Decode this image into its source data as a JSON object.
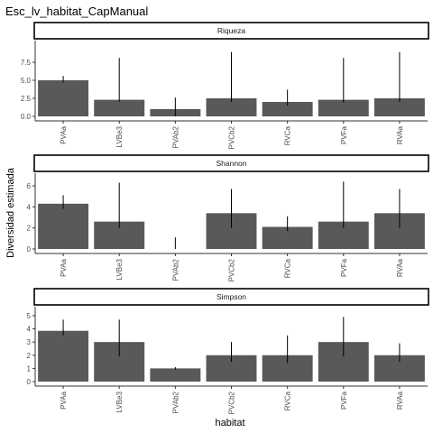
{
  "chart_data": {
    "type": "bar",
    "title": "Esc_lv_habitat_CapManual",
    "xlabel": "habitat",
    "ylabel": "Diversidad estimada",
    "categories": [
      "PVAa",
      "LVBe3",
      "PVAb2",
      "PVCb2",
      "RVCa",
      "PVFa",
      "RVAa"
    ],
    "facets": [
      {
        "name": "Riqueza",
        "ylim": [
          0,
          9.5
        ],
        "yticks": [
          "0.0",
          "2.5",
          "5.0",
          "7.5"
        ],
        "ytick_values": [
          0,
          2.5,
          5,
          7.5
        ],
        "values": [
          5,
          2.3,
          1,
          2.5,
          2,
          2.3,
          2.5
        ],
        "error_low": [
          4.7,
          2.0,
          0.0,
          2.0,
          1.5,
          1.9,
          2.0
        ],
        "error_high": [
          5.6,
          8.1,
          2.6,
          8.9,
          3.7,
          8.1,
          8.9
        ]
      },
      {
        "name": "Shannon",
        "ylim": [
          0,
          6.6
        ],
        "yticks": [
          "0",
          "2",
          "4",
          "6"
        ],
        "ytick_values": [
          0,
          2,
          4,
          6
        ],
        "values": [
          4.3,
          2.6,
          0,
          3.4,
          2.1,
          2.6,
          3.4
        ],
        "error_low": [
          3.8,
          2.0,
          0.0,
          2.0,
          1.7,
          2.0,
          2.0
        ],
        "error_high": [
          5.1,
          6.3,
          1.1,
          5.7,
          3.1,
          6.4,
          5.7
        ]
      },
      {
        "name": "Simpson",
        "ylim": [
          0,
          5.2
        ],
        "yticks": [
          "0",
          "1",
          "2",
          "3",
          "4",
          "5"
        ],
        "ytick_values": [
          0,
          1,
          2,
          3,
          4,
          5
        ],
        "values": [
          3.85,
          3,
          1,
          2,
          2,
          3,
          2
        ],
        "error_low": [
          3.5,
          1.9,
          0.9,
          1.5,
          1.4,
          1.9,
          1.5
        ],
        "error_high": [
          4.7,
          4.7,
          1.1,
          3.0,
          3.5,
          4.9,
          2.9
        ]
      }
    ],
    "colors": {
      "bar": "#595959",
      "error": "#000000",
      "axis": "#333333",
      "strip_border": "#000000",
      "tick_text": "#4d4d4d"
    },
    "grid": false,
    "legend": "none"
  }
}
